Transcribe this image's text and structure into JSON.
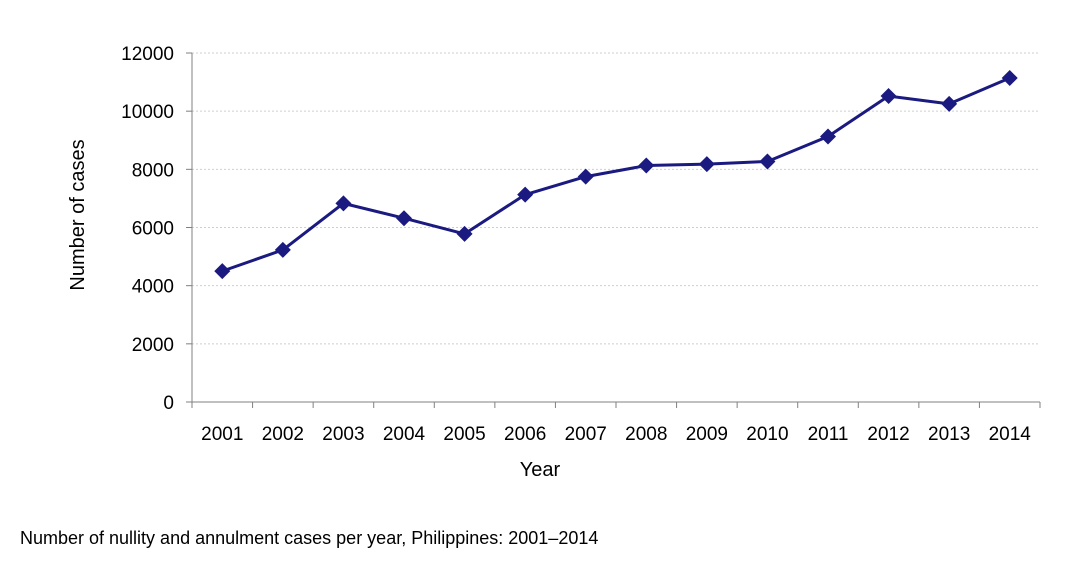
{
  "caption": "Number of nullity and annulment cases per year, Philippines: 2001–2014",
  "chart_data": {
    "type": "line",
    "title": "",
    "xlabel": "Year",
    "ylabel": "Number of cases",
    "categories": [
      "2001",
      "2002",
      "2003",
      "2004",
      "2005",
      "2006",
      "2007",
      "2008",
      "2009",
      "2010",
      "2011",
      "2012",
      "2013",
      "2014"
    ],
    "series": [
      {
        "values": [
          4500,
          5230,
          6830,
          6320,
          5780,
          7130,
          7750,
          8130,
          8180,
          8270,
          9130,
          10520,
          10250,
          11140
        ]
      }
    ],
    "ylim": [
      0,
      12000
    ],
    "yticks": [
      0,
      2000,
      4000,
      6000,
      8000,
      10000,
      12000
    ],
    "grid": true,
    "line_color": "#1a1a80",
    "marker": "diamond"
  }
}
